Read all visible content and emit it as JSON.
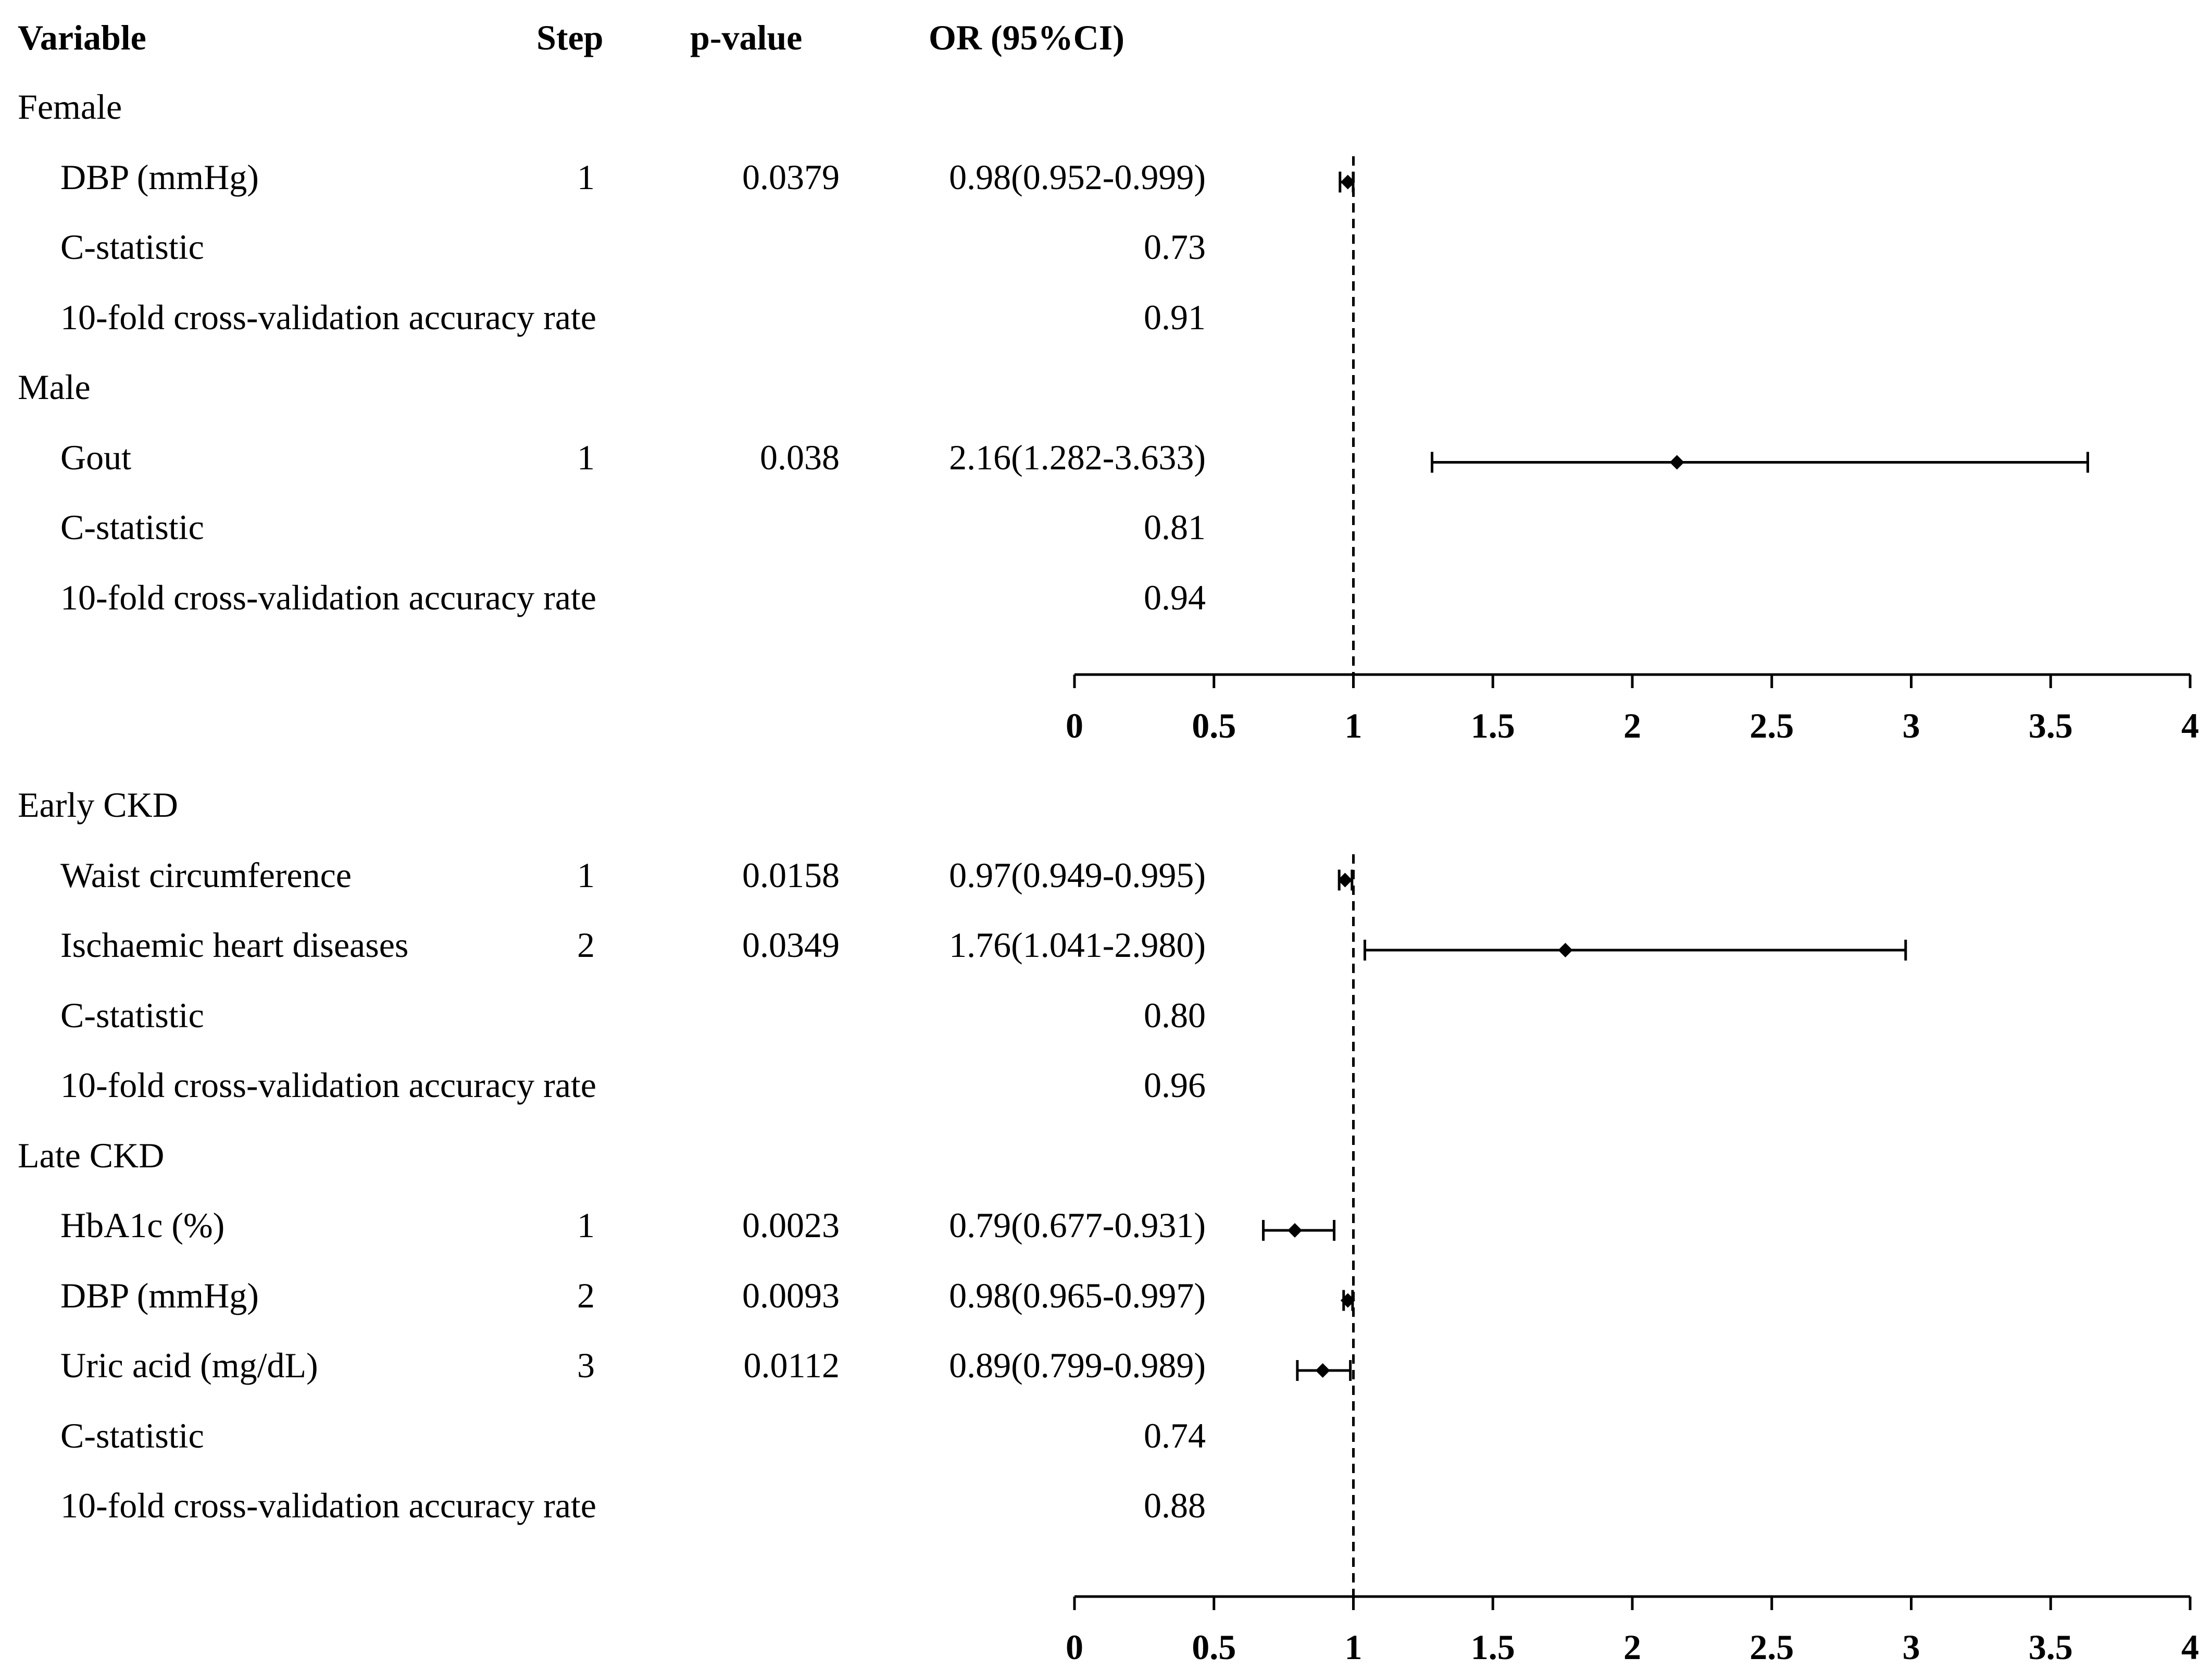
{
  "headers": {
    "variable": "Variable",
    "step": "Step",
    "pvalue": "p-value",
    "or": "OR (95%CI)"
  },
  "chart_data": {
    "type": "forest",
    "reference_line": 1,
    "xlim": [
      0,
      4
    ],
    "x_ticks": [
      "0",
      "0.5",
      "1",
      "1.5",
      "2",
      "2.5",
      "3",
      "3.5",
      "4"
    ],
    "panels": [
      {
        "name": "top",
        "groups": [
          {
            "name": "Female",
            "rows": [
              {
                "variable": "DBP (mmHg)",
                "step": "1",
                "p": "0.0379",
                "or_text": "0.98(0.952-0.999)",
                "or": 0.98,
                "lo": 0.952,
                "hi": 0.999
              },
              {
                "variable": "C-statistic",
                "or_text": "0.73"
              },
              {
                "variable": "10-fold cross-validation accuracy rate",
                "or_text": "0.91"
              }
            ]
          },
          {
            "name": "Male",
            "rows": [
              {
                "variable": "Gout",
                "step": "1",
                "p": "0.038",
                "or_text": "2.16(1.282-3.633)",
                "or": 2.16,
                "lo": 1.282,
                "hi": 3.633
              },
              {
                "variable": "C-statistic",
                "or_text": "0.81"
              },
              {
                "variable": "10-fold cross-validation accuracy rate",
                "or_text": "0.94"
              }
            ]
          }
        ]
      },
      {
        "name": "bottom",
        "groups": [
          {
            "name": "Early CKD",
            "rows": [
              {
                "variable": "Waist circumference",
                "step": "1",
                "p": "0.0158",
                "or_text": "0.97(0.949-0.995)",
                "or": 0.97,
                "lo": 0.949,
                "hi": 0.995
              },
              {
                "variable": "Ischaemic heart diseases",
                "step": "2",
                "p": "0.0349",
                "or_text": "1.76(1.041-2.980)",
                "or": 1.76,
                "lo": 1.041,
                "hi": 2.98
              },
              {
                "variable": "C-statistic",
                "or_text": "0.80"
              },
              {
                "variable": "10-fold cross-validation accuracy rate",
                "or_text": "0.96"
              }
            ]
          },
          {
            "name": "Late CKD",
            "rows": [
              {
                "variable": "HbA1c (%)",
                "step": "1",
                "p": "0.0023",
                "or_text": "0.79(0.677-0.931)",
                "or": 0.79,
                "lo": 0.677,
                "hi": 0.931
              },
              {
                "variable": "DBP (mmHg)",
                "step": "2",
                "p": "0.0093",
                "or_text": "0.98(0.965-0.997)",
                "or": 0.98,
                "lo": 0.965,
                "hi": 0.997
              },
              {
                "variable": "Uric acid (mg/dL)",
                "step": "3",
                "p": "0.0112",
                "or_text": "0.89(0.799-0.989)",
                "or": 0.89,
                "lo": 0.799,
                "hi": 0.989
              },
              {
                "variable": "C-statistic",
                "or_text": "0.74"
              },
              {
                "variable": "10-fold cross-validation accuracy rate",
                "or_text": "0.88"
              }
            ]
          }
        ]
      }
    ]
  }
}
